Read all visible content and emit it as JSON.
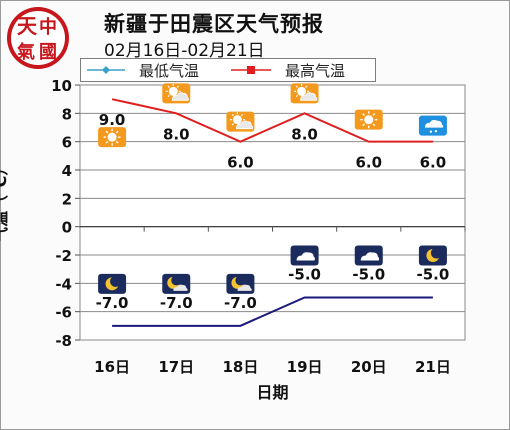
{
  "logo_text": "中國天氣",
  "chart_data": {
    "type": "line",
    "title": "新疆于田震区天气预报",
    "subtitle": "02月16日-02月21日",
    "xlabel": "日期",
    "ylabel": "气温（℃）",
    "categories": [
      "16日",
      "17日",
      "18日",
      "19日",
      "20日",
      "21日"
    ],
    "ylim": [
      -8,
      10
    ],
    "yticks": [
      -8,
      -6,
      -4,
      -2,
      0,
      2,
      4,
      6,
      8,
      10
    ],
    "grid": true,
    "legend_position": "top",
    "series": [
      {
        "name": "最低气温",
        "values": [
          -7.0,
          -7.0,
          -7.0,
          -5.0,
          -5.0,
          -5.0
        ],
        "labels": [
          "-7.0",
          "-7.0",
          "-7.0",
          "-5.0",
          "-5.0",
          "-5.0"
        ],
        "color": "#1a1a7a",
        "legend_marker_color": "#3aa0c8"
      },
      {
        "name": "最高气温",
        "values": [
          9.0,
          8.0,
          6.0,
          8.0,
          6.0,
          6.0
        ],
        "labels": [
          "9.0",
          "8.0",
          "6.0",
          "8.0",
          "6.0",
          "6.0"
        ],
        "color": "#e02020"
      }
    ],
    "day_icons": [
      "sunny-icon",
      "partly-cloudy-icon",
      "partly-cloudy-icon",
      "partly-cloudy-icon",
      "sunny-icon",
      "light-snow-icon"
    ],
    "night_icons": [
      "clear-night-icon",
      "cloudy-night-icon",
      "cloudy-night-icon",
      "overcast-icon",
      "overcast-icon",
      "clear-night-icon"
    ]
  }
}
